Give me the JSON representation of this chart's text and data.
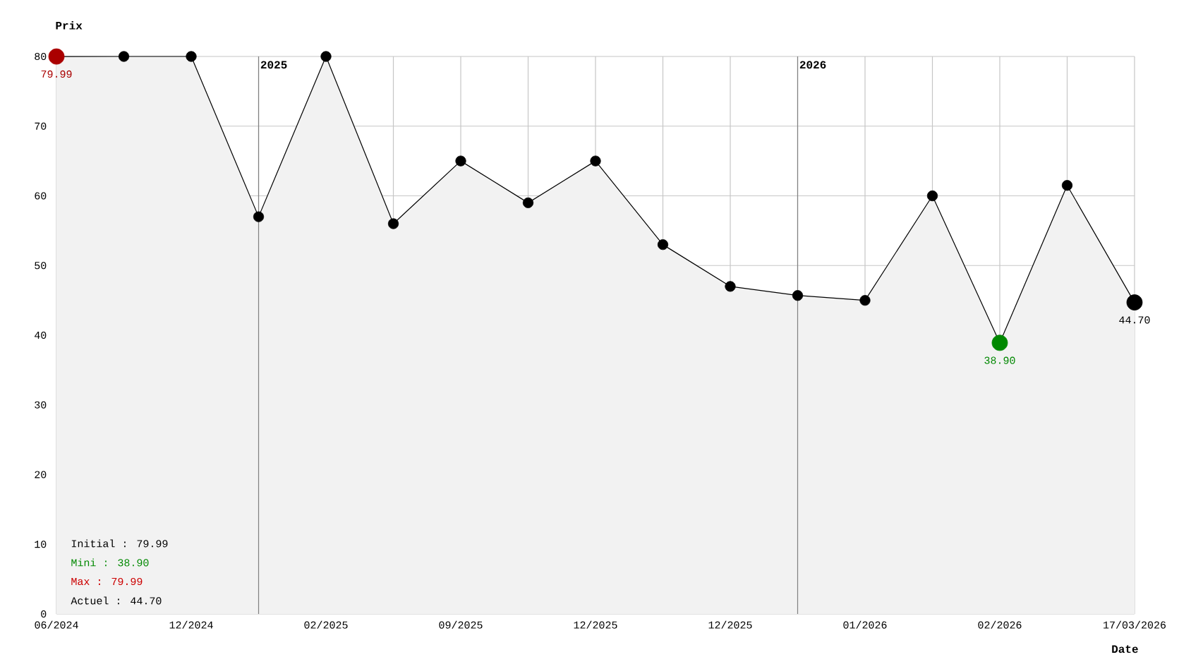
{
  "chart_data": {
    "type": "area",
    "xlabel": "Date",
    "ylabel": "Prix",
    "categories": [
      "06/2024",
      null,
      "12/2024",
      null,
      "02/2025",
      null,
      "09/2025",
      null,
      "12/2025",
      null,
      "12/2025",
      null,
      "01/2026",
      null,
      "02/2026",
      null,
      "17/03/2026"
    ],
    "series": [
      {
        "color": "#000000",
        "values": [
          79.99,
          80,
          80,
          57,
          80,
          56,
          65,
          59,
          65,
          53,
          47,
          45.7,
          45,
          60,
          38.9,
          61.5,
          44.7
        ],
        "colors": [
          "#aa0000",
          "#000000",
          "#000000",
          "#000000",
          "#000000",
          "#000000",
          "#000000",
          "#000000",
          "#000000",
          "#000000",
          "#000000",
          "#000000",
          "#000000",
          "#000000",
          "#008800",
          "#000000",
          "#000000"
        ],
        "value_labels": [
          "79.99",
          null,
          null,
          null,
          null,
          null,
          null,
          null,
          null,
          null,
          null,
          null,
          null,
          null,
          "38.90",
          null,
          "44.70"
        ]
      }
    ],
    "ylim": [
      0,
      80
    ],
    "yticks": [
      0,
      10,
      20,
      30,
      40,
      50,
      60,
      70,
      80
    ],
    "annotations": [
      "Initial : 79.99",
      "Mini : 38.90",
      "Max : 79.99",
      "Actuel : 44.70",
      "2025",
      "2026"
    ],
    "grid": true,
    "legend": false,
    "marker": "circle",
    "line_style": "solid"
  }
}
